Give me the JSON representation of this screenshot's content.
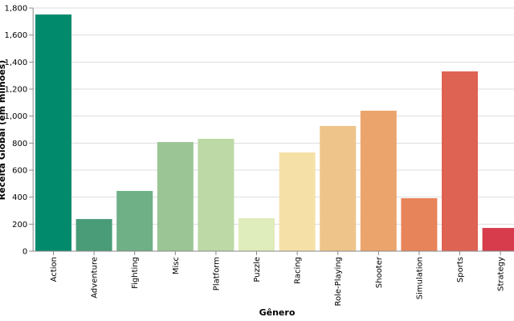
{
  "chart_data": {
    "type": "bar",
    "x_label": "Gênero",
    "y_label": "Receita Global (em milhões)",
    "categories": [
      "Action",
      "Adventure",
      "Fighting",
      "Misc",
      "Platform",
      "Puzzle",
      "Racing",
      "Role-Playing",
      "Shooter",
      "Simulation",
      "Sports",
      "Strategy"
    ],
    "values": [
      1752,
      238,
      446,
      808,
      832,
      244,
      731,
      927,
      1040,
      392,
      1331,
      172
    ],
    "colors": [
      "#028a6d",
      "#4a9c79",
      "#6fb086",
      "#9bc595",
      "#bcd9a6",
      "#dfecbb",
      "#f5e1a8",
      "#efc48a",
      "#eba56c",
      "#e88459",
      "#df6353",
      "#d63c4c"
    ],
    "ylim": [
      0,
      1800
    ],
    "yticks": [
      0,
      200,
      400,
      600,
      800,
      {
        "value": 1000,
        "label": "1,000"
      },
      {
        "value": 1200,
        "label": "1,200"
      },
      {
        "value": 1400,
        "label": "1,400"
      },
      {
        "value": 1600,
        "label": "1,600"
      },
      {
        "value": 1800,
        "label": "1,800"
      }
    ],
    "grid": true
  }
}
